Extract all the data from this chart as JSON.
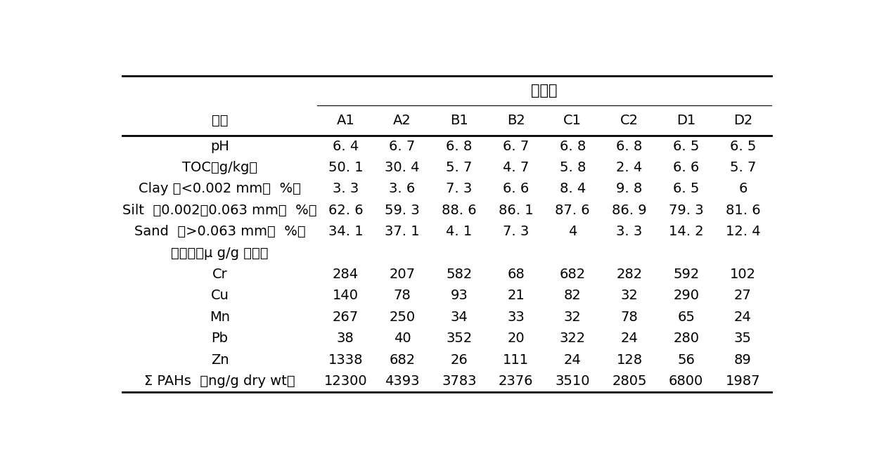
{
  "title": "沉积物",
  "header_label": "指标",
  "header_cols": [
    "A1",
    "A2",
    "B1",
    "B2",
    "C1",
    "C2",
    "D1",
    "D2"
  ],
  "rows": [
    {
      "label": "pH",
      "vals": [
        "6. 4",
        "6. 7",
        "6. 8",
        "6. 7",
        "6. 8",
        "6. 8",
        "6. 5",
        "6. 5"
      ],
      "label_align": "center",
      "bold": false
    },
    {
      "label": "TOC（g/kg）",
      "vals": [
        "50. 1",
        "30. 4",
        "5. 7",
        "4. 7",
        "5. 8",
        "2. 4",
        "6. 6",
        "5. 7"
      ],
      "label_align": "center",
      "bold": false
    },
    {
      "label": "Clay （<0.002 mm，  %）",
      "vals": [
        "3. 3",
        "3. 6",
        "7. 3",
        "6. 6",
        "8. 4",
        "9. 8",
        "6. 5",
        "6"
      ],
      "label_align": "center",
      "bold": false
    },
    {
      "label": "Silt  （0.002－0.063 mm，  %）",
      "vals": [
        "62. 6",
        "59. 3",
        "88. 6",
        "86. 1",
        "87. 6",
        "86. 9",
        "79. 3",
        "81. 6"
      ],
      "label_align": "center",
      "bold": false
    },
    {
      "label": "Sand  （>0.063 mm，  %）",
      "vals": [
        "34. 1",
        "37. 1",
        "4. 1",
        "7. 3",
        "4",
        "3. 3",
        "14. 2",
        "12. 4"
      ],
      "label_align": "center",
      "bold": false
    },
    {
      "label": "重金属（μ g/g 干重）",
      "vals": [
        "",
        "",
        "",
        "",
        "",
        "",
        "",
        ""
      ],
      "label_align": "center",
      "bold": false
    },
    {
      "label": "Cr",
      "vals": [
        "284",
        "207",
        "582",
        "68",
        "682",
        "282",
        "592",
        "102"
      ],
      "label_align": "center",
      "bold": false
    },
    {
      "label": "Cu",
      "vals": [
        "140",
        "78",
        "93",
        "21",
        "82",
        "32",
        "290",
        "27"
      ],
      "label_align": "center",
      "bold": false
    },
    {
      "label": "Mn",
      "vals": [
        "267",
        "250",
        "34",
        "33",
        "32",
        "78",
        "65",
        "24"
      ],
      "label_align": "center",
      "bold": false
    },
    {
      "label": "Pb",
      "vals": [
        "38",
        "40",
        "352",
        "20",
        "322",
        "24",
        "280",
        "35"
      ],
      "label_align": "center",
      "bold": false
    },
    {
      "label": "Zn",
      "vals": [
        "1338",
        "682",
        "26",
        "111",
        "24",
        "128",
        "56",
        "89"
      ],
      "label_align": "center",
      "bold": false
    },
    {
      "label": "Σ PAHs  （ng/g dry wt）",
      "vals": [
        "12300",
        "4393",
        "3783",
        "2376",
        "3510",
        "2805",
        "6800",
        "1987"
      ],
      "label_align": "center",
      "bold": false
    }
  ],
  "background_color": "#ffffff",
  "text_color": "#000000",
  "line_color": "#000000",
  "font_size": 14,
  "title_font_size": 15
}
